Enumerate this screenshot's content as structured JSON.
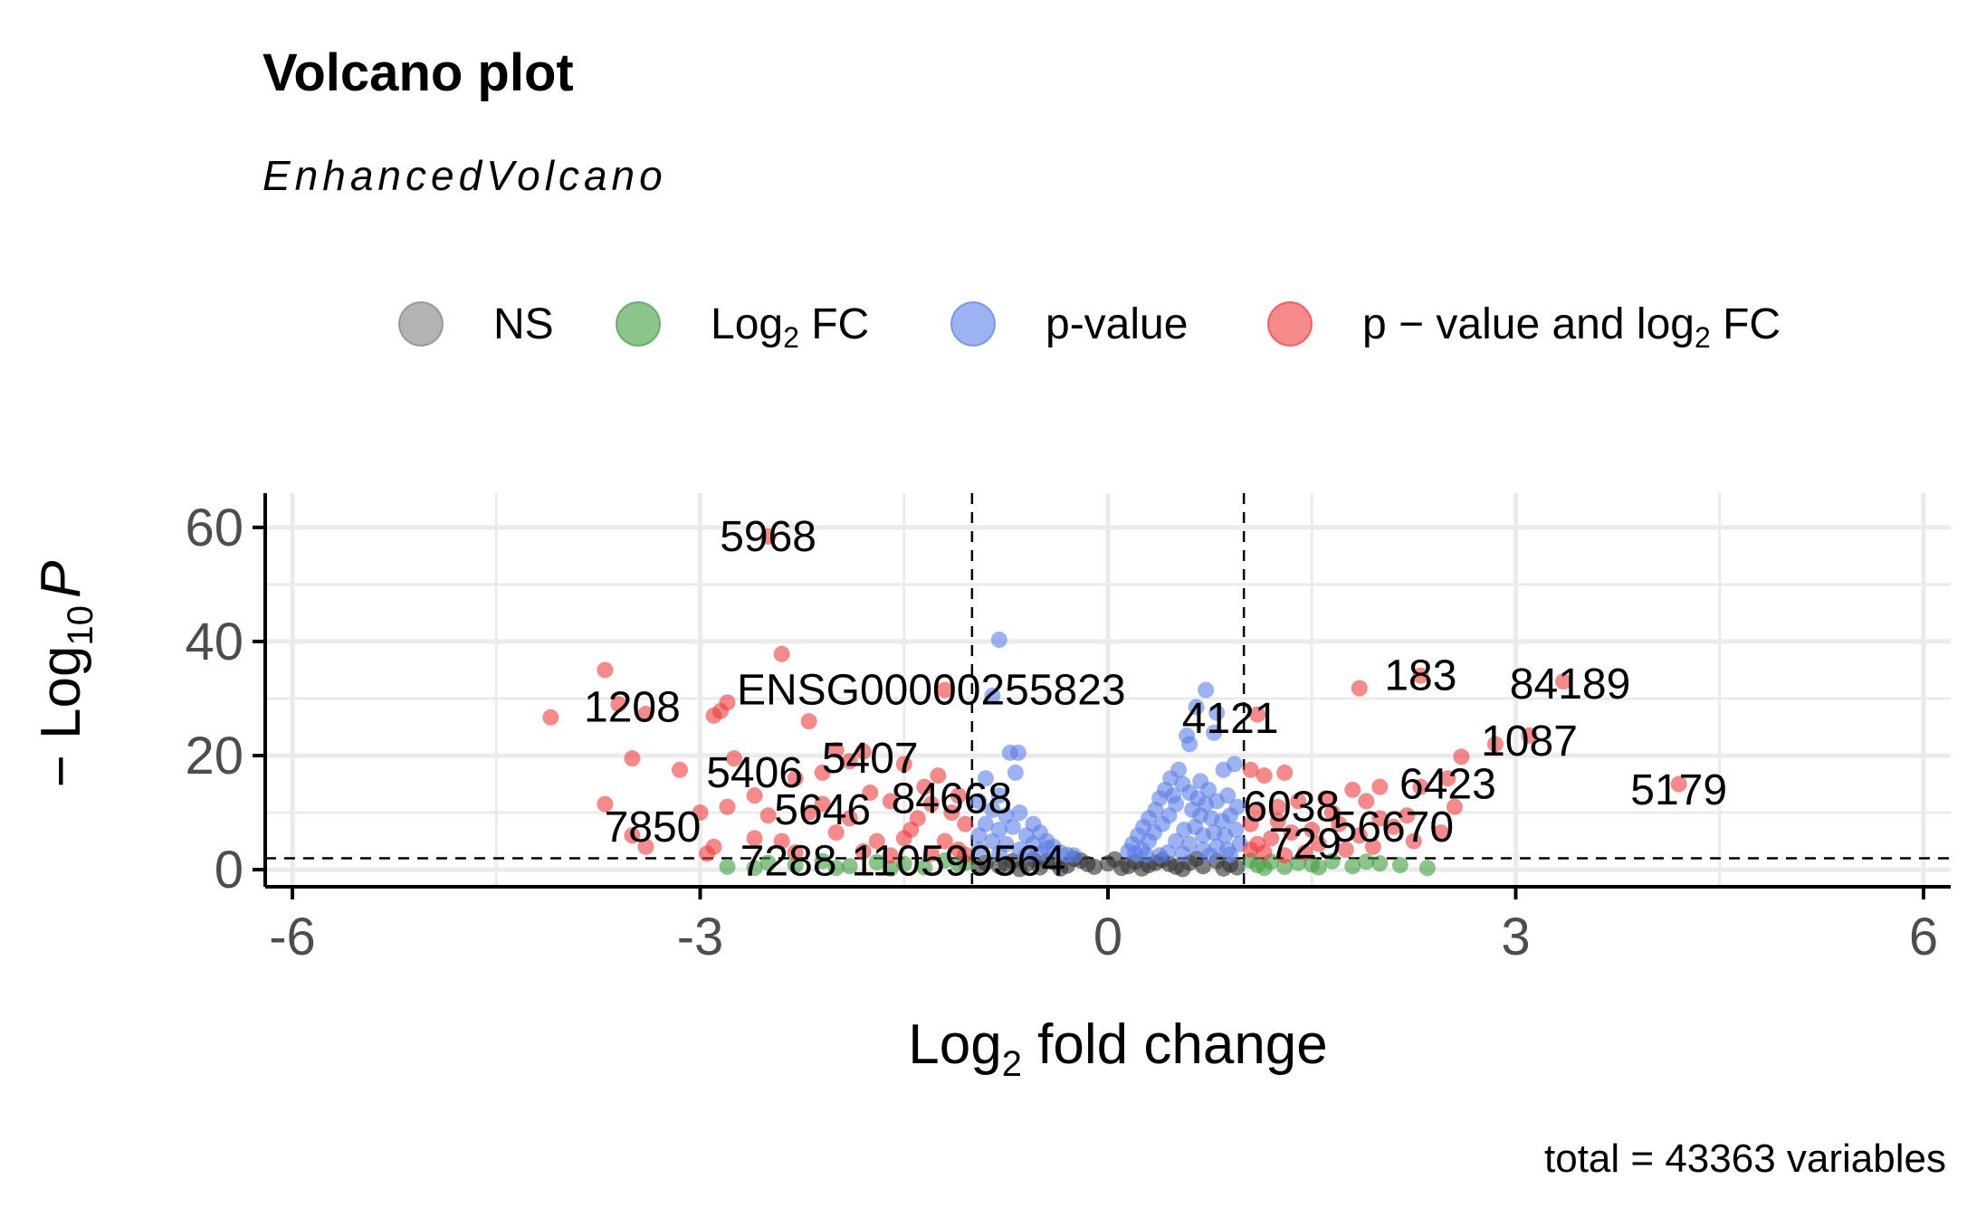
{
  "chart_data": {
    "type": "scatter",
    "title": "Volcano plot",
    "subtitle": "EnhancedVolcano",
    "xlabel": "Log2 fold change",
    "xlabel_parts": {
      "base": "Log",
      "sub": "2",
      "rest": " fold change"
    },
    "ylabel": "- Log10 P",
    "ylabel_parts": {
      "prefix": "− Log",
      "sub": "10",
      "italic": "P"
    },
    "caption": "total = 43363 variables",
    "xlim": [
      -6.2,
      6.2
    ],
    "ylim": [
      -3,
      66
    ],
    "x_ticks": [
      -6,
      -3,
      0,
      3,
      6
    ],
    "x_tick_labels": [
      "-6",
      "-3",
      "0",
      "3",
      "6"
    ],
    "y_ticks": [
      0,
      20,
      40,
      60
    ],
    "y_tick_labels": [
      "0",
      "20",
      "40",
      "60"
    ],
    "fc_cutoff": 1,
    "p_cutoff": 2,
    "grid": true,
    "legend_position": "top",
    "legend": [
      {
        "key": "NS",
        "base": "NS",
        "sub": "",
        "rest": "",
        "color": "#808080"
      },
      {
        "key": "Log2 FC",
        "base": "Log",
        "sub": "2",
        "rest": " FC",
        "color": "#3f9f3f"
      },
      {
        "key": "p-value",
        "base": "p-value",
        "sub": "",
        "rest": "",
        "color": "#5b7fe6"
      },
      {
        "key": "p - value and log2 FC",
        "base": "p − value and log",
        "sub": "2",
        "rest": " FC",
        "color": "#f03a3a"
      }
    ],
    "series": [
      {
        "name": "p - value and log2 FC",
        "color": "#f03a3a",
        "points": [
          [
            -2.5,
            58.4
          ],
          [
            -2.4,
            37.8
          ],
          [
            -3.7,
            35.0
          ],
          [
            -3.6,
            29.0
          ],
          [
            -4.1,
            26.7
          ],
          [
            -3.4,
            27.3
          ],
          [
            -2.8,
            29.3
          ],
          [
            -2.9,
            27.0
          ],
          [
            -2.85,
            27.8
          ],
          [
            -2.2,
            26.0
          ],
          [
            -1.2,
            31.5
          ],
          [
            -1.5,
            18.5
          ],
          [
            -1.8,
            20.7
          ],
          [
            -2.0,
            21.0
          ],
          [
            -1.9,
            19.0
          ],
          [
            -2.1,
            17.0
          ],
          [
            -3.5,
            19.5
          ],
          [
            -3.15,
            17.5
          ],
          [
            -2.75,
            19.5
          ],
          [
            -2.3,
            16.0
          ],
          [
            -1.25,
            16.5
          ],
          [
            -1.6,
            12.0
          ],
          [
            -1.3,
            11.5
          ],
          [
            -1.1,
            13.0
          ],
          [
            -3.7,
            11.5
          ],
          [
            -3.0,
            10.0
          ],
          [
            -2.8,
            11.0
          ],
          [
            -2.5,
            9.5
          ],
          [
            -2.2,
            10.0
          ],
          [
            -1.9,
            9.0
          ],
          [
            -1.4,
            9.0
          ],
          [
            -1.05,
            8.0
          ],
          [
            -3.5,
            6.0
          ],
          [
            -3.4,
            4.0
          ],
          [
            -2.9,
            4.0
          ],
          [
            -2.6,
            5.5
          ],
          [
            -2.4,
            5.0
          ],
          [
            -2.0,
            6.5
          ],
          [
            -1.7,
            5.0
          ],
          [
            -1.5,
            5.5
          ],
          [
            -1.2,
            5.0
          ],
          [
            -1.1,
            3.5
          ],
          [
            -2.95,
            2.8
          ],
          [
            -2.3,
            3.0
          ],
          [
            -1.8,
            3.2
          ],
          [
            -1.6,
            2.5
          ],
          [
            -1.3,
            2.8
          ],
          [
            -1.05,
            2.6
          ],
          [
            -2.1,
            11.5
          ],
          [
            -1.35,
            14.5
          ],
          [
            -1.15,
            10.0
          ],
          [
            -1.45,
            7.0
          ],
          [
            -1.75,
            13.5
          ],
          [
            -2.6,
            13.0
          ],
          [
            1.1,
            27.2
          ],
          [
            1.85,
            31.8
          ],
          [
            2.3,
            34.0
          ],
          [
            3.35,
            33.0
          ],
          [
            3.1,
            23.5
          ],
          [
            2.85,
            22.0
          ],
          [
            2.6,
            19.8
          ],
          [
            2.5,
            16.0
          ],
          [
            4.2,
            15.0
          ],
          [
            2.3,
            14.5
          ],
          [
            2.0,
            14.5
          ],
          [
            1.8,
            14.0
          ],
          [
            1.3,
            17.0
          ],
          [
            1.15,
            16.5
          ],
          [
            1.05,
            17.5
          ],
          [
            2.55,
            11.0
          ],
          [
            2.2,
            9.5
          ],
          [
            2.0,
            9.0
          ],
          [
            1.9,
            12.0
          ],
          [
            1.6,
            12.5
          ],
          [
            1.4,
            12.0
          ],
          [
            1.25,
            11.0
          ],
          [
            1.1,
            10.5
          ],
          [
            1.05,
            8.0
          ],
          [
            2.1,
            7.5
          ],
          [
            1.85,
            6.0
          ],
          [
            1.7,
            8.0
          ],
          [
            1.5,
            7.0
          ],
          [
            1.35,
            6.5
          ],
          [
            1.2,
            5.5
          ],
          [
            1.1,
            4.5
          ],
          [
            1.05,
            3.5
          ],
          [
            1.95,
            4.0
          ],
          [
            1.75,
            3.5
          ],
          [
            1.55,
            4.5
          ],
          [
            1.45,
            3.0
          ],
          [
            1.3,
            2.5
          ],
          [
            1.15,
            3.0
          ],
          [
            2.45,
            6.5
          ],
          [
            2.25,
            5.0
          ],
          [
            1.65,
            10.0
          ],
          [
            1.25,
            8.5
          ]
        ]
      },
      {
        "name": "p-value",
        "color": "#5b7fe6",
        "points": [
          [
            -0.8,
            40.3
          ],
          [
            -0.85,
            30.5
          ],
          [
            0.72,
            31.5
          ],
          [
            0.65,
            28.5
          ],
          [
            0.8,
            27.5
          ],
          [
            0.78,
            24.0
          ],
          [
            0.58,
            23.5
          ],
          [
            0.6,
            22.0
          ],
          [
            -0.72,
            20.5
          ],
          [
            -0.66,
            20.5
          ],
          [
            0.93,
            18.5
          ],
          [
            0.85,
            17.5
          ],
          [
            -0.68,
            17.0
          ],
          [
            -0.9,
            16.0
          ],
          [
            -0.8,
            13.0
          ],
          [
            0.52,
            17.5
          ],
          [
            0.46,
            16.0
          ],
          [
            0.42,
            14.0
          ],
          [
            0.38,
            12.5
          ],
          [
            0.35,
            10.5
          ],
          [
            0.3,
            9.0
          ],
          [
            0.26,
            7.5
          ],
          [
            0.22,
            6.0
          ],
          [
            0.18,
            4.5
          ],
          [
            0.55,
            15.0
          ],
          [
            0.6,
            13.5
          ],
          [
            0.66,
            12.5
          ],
          [
            0.72,
            11.5
          ],
          [
            0.8,
            12.0
          ],
          [
            0.88,
            13.0
          ],
          [
            0.95,
            11.0
          ],
          [
            0.9,
            9.5
          ],
          [
            0.84,
            8.5
          ],
          [
            0.76,
            9.0
          ],
          [
            0.68,
            9.5
          ],
          [
            0.62,
            10.5
          ],
          [
            0.5,
            11.5
          ],
          [
            0.45,
            9.5
          ],
          [
            0.4,
            8.0
          ],
          [
            0.34,
            6.5
          ],
          [
            0.3,
            5.0
          ],
          [
            0.25,
            3.5
          ],
          [
            0.56,
            7.0
          ],
          [
            0.64,
            7.5
          ],
          [
            0.7,
            6.0
          ],
          [
            0.78,
            6.5
          ],
          [
            0.86,
            6.0
          ],
          [
            0.94,
            7.0
          ],
          [
            0.97,
            4.5
          ],
          [
            0.88,
            3.5
          ],
          [
            0.8,
            4.0
          ],
          [
            0.7,
            3.5
          ],
          [
            0.6,
            4.5
          ],
          [
            0.5,
            5.0
          ],
          [
            0.44,
            3.0
          ],
          [
            0.38,
            2.5
          ],
          [
            0.55,
            2.8
          ],
          [
            0.75,
            2.5
          ],
          [
            0.9,
            2.6
          ],
          [
            0.48,
            13.0
          ],
          [
            -0.95,
            12.0
          ],
          [
            -0.85,
            10.5
          ],
          [
            -0.75,
            9.5
          ],
          [
            -0.65,
            10.0
          ],
          [
            -0.55,
            8.0
          ],
          [
            -0.5,
            6.5
          ],
          [
            -0.45,
            5.0
          ],
          [
            -0.4,
            4.0
          ],
          [
            -0.35,
            3.0
          ],
          [
            -0.9,
            8.0
          ],
          [
            -0.8,
            7.0
          ],
          [
            -0.7,
            7.5
          ],
          [
            -0.6,
            6.0
          ],
          [
            -0.55,
            4.5
          ],
          [
            -0.95,
            6.0
          ],
          [
            -0.85,
            5.0
          ],
          [
            -0.75,
            4.5
          ],
          [
            -0.65,
            3.5
          ],
          [
            -0.95,
            3.5
          ],
          [
            -0.8,
            2.8
          ],
          [
            -0.6,
            2.6
          ],
          [
            -0.5,
            2.8
          ],
          [
            -0.45,
            3.8
          ],
          [
            0.28,
            2.6
          ],
          [
            0.2,
            2.8
          ],
          [
            0.15,
            3.2
          ],
          [
            -0.3,
            2.6
          ],
          [
            -0.25,
            2.5
          ],
          [
            0.68,
            15.5
          ],
          [
            0.74,
            14.0
          ]
        ]
      },
      {
        "name": "Log2 FC",
        "color": "#3f9f3f",
        "points": [
          [
            -2.8,
            0.5
          ],
          [
            -2.5,
            1.2
          ],
          [
            -2.3,
            0.8
          ],
          [
            -2.1,
            1.5
          ],
          [
            -1.9,
            0.6
          ],
          [
            -1.7,
            1.3
          ],
          [
            -1.5,
            1.0
          ],
          [
            -1.35,
            0.4
          ],
          [
            -1.2,
            1.6
          ],
          [
            -1.1,
            0.9
          ],
          [
            -1.05,
            1.2
          ],
          [
            -2.0,
            0.3
          ],
          [
            -1.6,
            0.2
          ],
          [
            -2.6,
            0.3
          ],
          [
            1.1,
            0.8
          ],
          [
            1.2,
            1.4
          ],
          [
            1.3,
            0.5
          ],
          [
            1.4,
            1.2
          ],
          [
            1.5,
            0.9
          ],
          [
            1.65,
            1.5
          ],
          [
            1.8,
            0.6
          ],
          [
            2.0,
            1.1
          ],
          [
            2.35,
            0.3
          ],
          [
            1.05,
            1.6
          ],
          [
            1.15,
            0.3
          ],
          [
            1.55,
            0.4
          ],
          [
            1.9,
            1.4
          ],
          [
            2.15,
            0.8
          ]
        ]
      },
      {
        "name": "NS",
        "color": "#303030",
        "points": [
          [
            -0.9,
            1.2
          ],
          [
            -0.8,
            0.6
          ],
          [
            -0.7,
            1.5
          ],
          [
            -0.6,
            0.9
          ],
          [
            -0.5,
            0.4
          ],
          [
            -0.4,
            1.3
          ],
          [
            -0.3,
            0.7
          ],
          [
            -0.2,
            1.6
          ],
          [
            -0.1,
            0.5
          ],
          [
            0.0,
            1.1
          ],
          [
            0.1,
            0.3
          ],
          [
            0.2,
            1.4
          ],
          [
            0.3,
            0.8
          ],
          [
            0.4,
            1.7
          ],
          [
            0.5,
            0.5
          ],
          [
            0.6,
            1.2
          ],
          [
            0.7,
            0.6
          ],
          [
            0.8,
            1.5
          ],
          [
            0.9,
            0.9
          ],
          [
            0.95,
            0.4
          ],
          [
            -0.95,
            0.3
          ],
          [
            -0.75,
            1.0
          ],
          [
            -0.55,
            1.8
          ],
          [
            -0.35,
            0.2
          ],
          [
            -0.15,
            1.0
          ],
          [
            0.05,
            1.8
          ],
          [
            0.25,
            0.2
          ],
          [
            0.45,
            1.0
          ],
          [
            0.65,
            1.9
          ],
          [
            0.85,
            0.2
          ],
          [
            -0.25,
            1.9
          ],
          [
            0.15,
            0.6
          ],
          [
            0.55,
            0.1
          ],
          [
            -0.65,
            0.1
          ],
          [
            0.35,
            1.2
          ],
          [
            -0.45,
            1.5
          ]
        ]
      }
    ],
    "point_labels": [
      {
        "text": "5968",
        "x": -2.5,
        "y": 58.4
      },
      {
        "text": "ENSG00000255823",
        "x": -1.3,
        "y": 31.5
      },
      {
        "text": "1208",
        "x": -3.5,
        "y": 28.5
      },
      {
        "text": "4121",
        "x": 0.9,
        "y": 26.5
      },
      {
        "text": "183",
        "x": 2.3,
        "y": 34.0
      },
      {
        "text": "84189",
        "x": 3.4,
        "y": 32.5
      },
      {
        "text": "1087",
        "x": 3.1,
        "y": 22.5
      },
      {
        "text": "5407",
        "x": -1.75,
        "y": 19.5
      },
      {
        "text": "5406",
        "x": -2.6,
        "y": 17.0
      },
      {
        "text": "6423",
        "x": 2.5,
        "y": 15.0
      },
      {
        "text": "5179",
        "x": 4.2,
        "y": 14.0
      },
      {
        "text": "84668",
        "x": -1.15,
        "y": 12.5
      },
      {
        "text": "5646",
        "x": -2.1,
        "y": 10.5
      },
      {
        "text": "6038",
        "x": 1.35,
        "y": 11.0
      },
      {
        "text": "56670",
        "x": 2.1,
        "y": 7.5
      },
      {
        "text": "7850",
        "x": -3.35,
        "y": 7.5
      },
      {
        "text": "729",
        "x": 1.45,
        "y": 4.5
      },
      {
        "text": "7288",
        "x": -2.35,
        "y": 1.5
      },
      {
        "text": "110599564",
        "x": -1.1,
        "y": 1.5
      }
    ]
  }
}
